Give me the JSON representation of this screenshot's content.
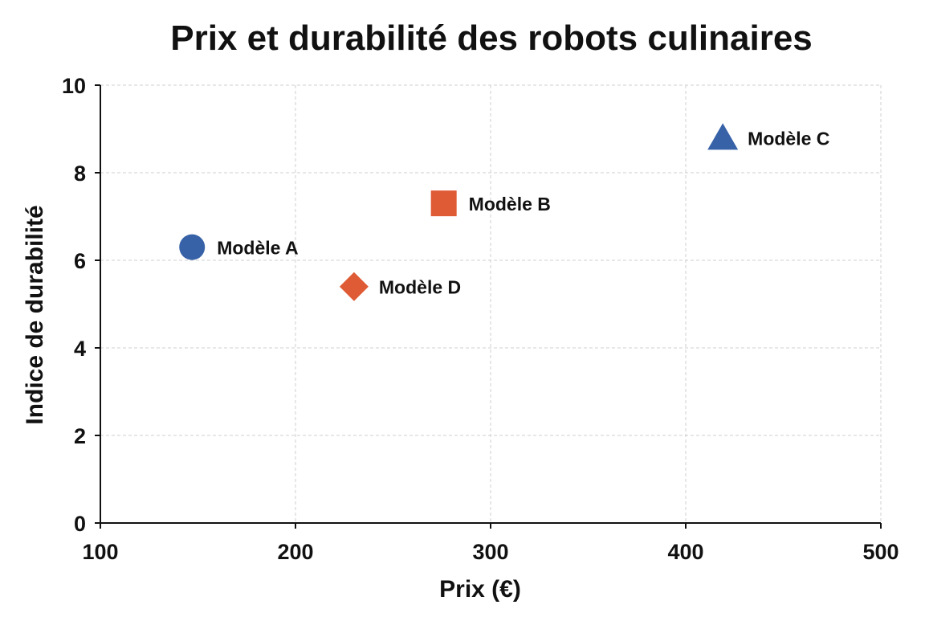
{
  "chart_data": {
    "type": "scatter",
    "title": "Prix et durabilité des robots culinaires",
    "xlabel": "Prix (€)",
    "ylabel": "Indice de durabilité",
    "xlim": [
      100,
      500
    ],
    "ylim": [
      0,
      10
    ],
    "x_ticks": [
      100,
      200,
      300,
      400,
      500
    ],
    "y_ticks": [
      0,
      2,
      4,
      6,
      8,
      10
    ],
    "grid": true,
    "points": [
      {
        "label": "Modèle A",
        "x": 147,
        "y": 6.3,
        "marker": "circle",
        "color": "#3762a8"
      },
      {
        "label": "Modèle B",
        "x": 276,
        "y": 7.3,
        "marker": "square",
        "color": "#de5b35"
      },
      {
        "label": "Modèle C",
        "x": 419,
        "y": 8.8,
        "marker": "triangle",
        "color": "#3762a8"
      },
      {
        "label": "Modèle D",
        "x": 230,
        "y": 5.4,
        "marker": "diamond",
        "color": "#de5b35"
      }
    ]
  }
}
